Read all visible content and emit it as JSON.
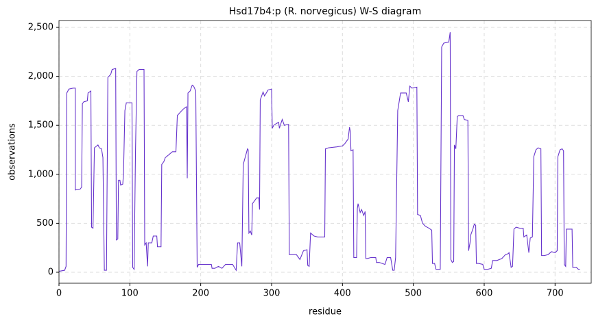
{
  "chart_data": {
    "type": "line",
    "title": "Hsd17b4:p (R. norvegicus) W-S diagram",
    "x_label": "residue",
    "y_label": "observations",
    "grid": true,
    "color": "#6633cc",
    "xlim": [
      0,
      751
    ],
    "ylim": [
      -112,
      2570
    ],
    "xticks": [
      0,
      100,
      200,
      300,
      400,
      500,
      600,
      700
    ],
    "yticks": [
      0,
      500,
      {
        "value": 1000,
        "label": "1,000"
      },
      {
        "value": 1500,
        "label": "1,500"
      },
      {
        "value": 2000,
        "label": "2,000"
      },
      {
        "value": 2500,
        "label": "2,500"
      }
    ],
    "x": [
      0,
      8,
      10,
      11,
      14,
      20,
      23,
      23,
      30,
      32,
      33,
      35,
      40,
      41,
      45,
      46,
      48,
      50,
      55,
      57,
      60,
      62,
      64,
      67,
      69,
      73,
      75,
      80,
      81,
      83,
      84,
      86,
      87,
      90,
      91,
      93,
      95,
      103,
      104,
      106,
      108,
      110,
      113,
      120,
      121,
      123,
      125,
      126,
      131,
      133,
      138,
      139,
      144,
      145,
      148,
      150,
      155,
      160,
      165,
      167,
      172,
      176,
      180,
      181,
      182,
      185,
      188,
      190,
      193,
      195,
      197,
      205,
      215,
      216,
      220,
      225,
      230,
      235,
      245,
      250,
      252,
      255,
      258,
      260,
      263,
      266,
      267,
      268,
      270,
      272,
      273,
      276,
      279,
      282,
      283,
      284,
      288,
      290,
      295,
      300,
      301,
      303,
      307,
      310,
      311,
      315,
      318,
      324,
      325,
      330,
      335,
      340,
      345,
      350,
      351,
      353,
      355,
      360,
      365,
      375,
      376,
      380,
      392,
      400,
      403,
      408,
      410,
      411,
      412,
      415,
      416,
      420,
      421,
      422,
      425,
      427,
      430,
      432,
      433,
      435,
      440,
      447,
      448,
      452,
      460,
      463,
      468,
      471,
      473,
      475,
      478,
      482,
      490,
      493,
      495,
      498,
      505,
      506,
      510,
      513,
      517,
      522,
      526,
      527,
      530,
      532,
      538,
      540,
      543,
      550,
      552,
      553,
      555,
      557,
      558,
      560,
      562,
      564,
      570,
      572,
      577,
      578,
      580,
      581,
      584,
      586,
      588,
      589,
      592,
      598,
      600,
      605,
      610,
      612,
      618,
      625,
      630,
      634,
      635,
      638,
      640,
      642,
      645,
      650,
      655,
      656,
      660,
      663,
      665,
      668,
      670,
      673,
      676,
      680,
      681,
      685,
      690,
      695,
      700,
      703,
      704,
      707,
      710,
      712,
      713,
      715,
      716,
      720,
      724,
      725,
      730,
      733,
      735
    ],
    "values": [
      10,
      20,
      60,
      1830,
      1870,
      1880,
      1880,
      840,
      850,
      870,
      1720,
      1740,
      1750,
      1830,
      1850,
      460,
      450,
      1270,
      1300,
      1270,
      1260,
      1170,
      20,
      20,
      1990,
      2020,
      2070,
      2080,
      330,
      340,
      940,
      940,
      890,
      900,
      1000,
      1650,
      1730,
      1730,
      50,
      30,
      1250,
      2050,
      2070,
      2070,
      280,
      300,
      60,
      300,
      300,
      370,
      370,
      260,
      260,
      1100,
      1130,
      1170,
      1200,
      1230,
      1230,
      1600,
      1640,
      1670,
      1690,
      960,
      1830,
      1850,
      1910,
      1900,
      1850,
      50,
      80,
      80,
      80,
      40,
      40,
      60,
      40,
      80,
      80,
      20,
      300,
      300,
      60,
      1100,
      1180,
      1260,
      1250,
      400,
      420,
      380,
      700,
      730,
      760,
      760,
      640,
      1760,
      1840,
      1800,
      1860,
      1870,
      1470,
      1500,
      1520,
      1530,
      1470,
      1560,
      1500,
      1510,
      180,
      180,
      180,
      130,
      220,
      230,
      70,
      60,
      400,
      370,
      360,
      360,
      1260,
      1270,
      1280,
      1290,
      1310,
      1360,
      1480,
      1440,
      1240,
      1250,
      150,
      150,
      650,
      700,
      610,
      640,
      580,
      620,
      140,
      140,
      150,
      150,
      100,
      100,
      80,
      150,
      150,
      20,
      20,
      150,
      1650,
      1830,
      1830,
      1740,
      1900,
      1880,
      1890,
      590,
      580,
      500,
      470,
      450,
      430,
      90,
      90,
      30,
      30,
      2300,
      2340,
      2350,
      2450,
      130,
      100,
      110,
      1300,
      1260,
      1590,
      1600,
      1600,
      1560,
      1550,
      220,
      300,
      380,
      440,
      490,
      480,
      90,
      90,
      80,
      30,
      30,
      40,
      120,
      120,
      140,
      180,
      190,
      200,
      50,
      60,
      440,
      460,
      450,
      450,
      360,
      380,
      200,
      350,
      360,
      1180,
      1250,
      1270,
      1260,
      170,
      170,
      180,
      210,
      200,
      220,
      1180,
      1250,
      1260,
      1240,
      80,
      60,
      440,
      440,
      440,
      50,
      50,
      30,
      30
    ]
  }
}
